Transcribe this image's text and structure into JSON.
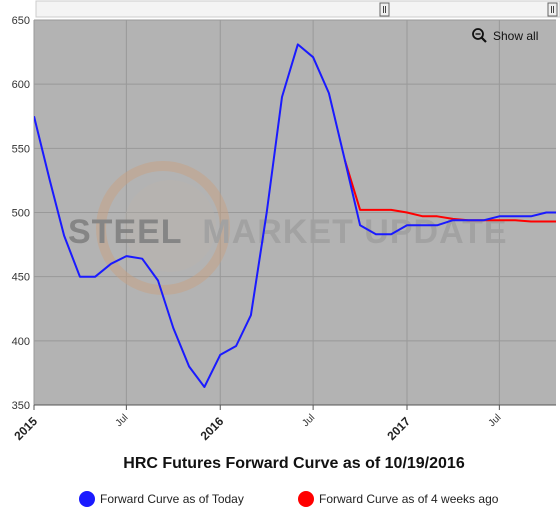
{
  "chart_data": {
    "type": "line",
    "title": "HRC Futures Forward Curve as of 10/19/2016",
    "xlabel": "",
    "ylabel": "",
    "x_range": [
      "2015-01-01",
      "2017-10-20"
    ],
    "ylim": [
      350,
      650
    ],
    "y_ticks": [
      350,
      400,
      450,
      500,
      550,
      600,
      650
    ],
    "x_ticks": [
      {
        "date": "2015-01-01",
        "label": "2015",
        "major": true
      },
      {
        "date": "2015-07-01",
        "label": "Jul",
        "major": false
      },
      {
        "date": "2016-01-01",
        "label": "2016",
        "major": true
      },
      {
        "date": "2016-07-01",
        "label": "Jul",
        "major": false
      },
      {
        "date": "2017-01-01",
        "label": "2017",
        "major": true
      },
      {
        "date": "2017-07-01",
        "label": "Jul",
        "major": false
      }
    ],
    "grid": true,
    "legend": "bottom",
    "series": [
      {
        "name": "Forward Curve as of Today",
        "color": "#1a1aff",
        "points": [
          [
            "2015-01-01",
            575
          ],
          [
            "2015-02-01",
            525
          ],
          [
            "2015-03-01",
            482
          ],
          [
            "2015-04-01",
            450
          ],
          [
            "2015-05-01",
            450
          ],
          [
            "2015-06-01",
            460
          ],
          [
            "2015-07-01",
            466
          ],
          [
            "2015-08-01",
            464
          ],
          [
            "2015-09-01",
            447
          ],
          [
            "2015-10-01",
            410
          ],
          [
            "2015-11-01",
            380
          ],
          [
            "2015-12-01",
            364
          ],
          [
            "2016-01-01",
            389
          ],
          [
            "2016-02-01",
            396
          ],
          [
            "2016-03-01",
            420
          ],
          [
            "2016-04-01",
            500
          ],
          [
            "2016-05-01",
            590
          ],
          [
            "2016-06-01",
            631
          ],
          [
            "2016-07-01",
            621
          ],
          [
            "2016-08-01",
            593
          ],
          [
            "2016-09-01",
            541
          ],
          [
            "2016-10-01",
            490
          ],
          [
            "2016-11-01",
            483
          ],
          [
            "2016-12-01",
            483
          ],
          [
            "2017-01-01",
            490
          ],
          [
            "2017-02-01",
            490
          ],
          [
            "2017-03-01",
            490
          ],
          [
            "2017-04-01",
            494
          ],
          [
            "2017-05-01",
            494
          ],
          [
            "2017-06-01",
            494
          ],
          [
            "2017-07-01",
            497
          ],
          [
            "2017-08-01",
            497
          ],
          [
            "2017-09-01",
            497
          ],
          [
            "2017-10-01",
            500
          ],
          [
            "2017-10-20",
            500
          ]
        ]
      },
      {
        "name": "Forward Curve as of 4 weeks ago",
        "color": "#ff0000",
        "points": [
          [
            "2016-09-01",
            541
          ],
          [
            "2016-10-01",
            502
          ],
          [
            "2016-11-01",
            502
          ],
          [
            "2016-12-01",
            502
          ],
          [
            "2017-01-01",
            500
          ],
          [
            "2017-02-01",
            497
          ],
          [
            "2017-03-01",
            497
          ],
          [
            "2017-04-01",
            495
          ],
          [
            "2017-05-01",
            494
          ],
          [
            "2017-06-01",
            494
          ],
          [
            "2017-07-01",
            494
          ],
          [
            "2017-08-01",
            494
          ],
          [
            "2017-09-01",
            493
          ],
          [
            "2017-10-01",
            493
          ],
          [
            "2017-10-20",
            493
          ]
        ]
      }
    ]
  },
  "controls": {
    "show_all_label": "Show all",
    "zoom_icon": "zoom-out-magnifier-icon"
  },
  "watermark": {
    "text_dark": "STEEL",
    "text_light": "MARKET UPDATE"
  },
  "colors": {
    "plot_bg": "#b3b3b3",
    "grid": "#999999",
    "axis": "#555555"
  }
}
